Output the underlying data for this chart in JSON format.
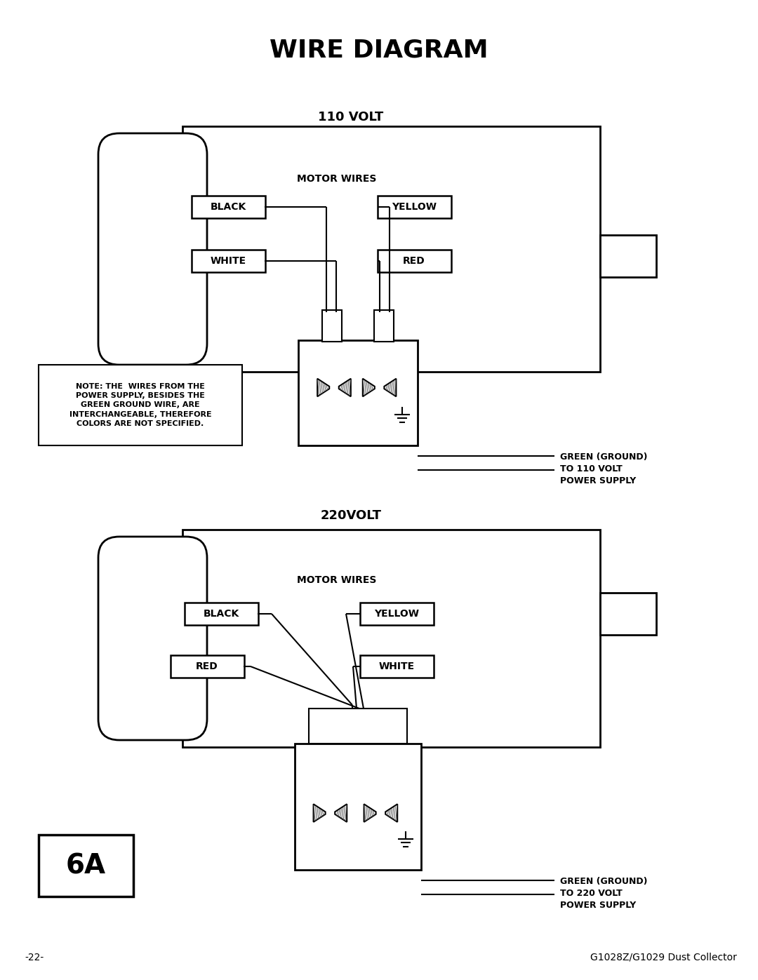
{
  "title": "WIRE DIAGRAM",
  "title_fontsize": 26,
  "title_fontweight": "bold",
  "bg_color": "#ffffff",
  "line_color": "#000000",
  "page_num": "-22-",
  "page_ref": "G1028Z/G1029 Dust Collector",
  "diagram1": {
    "label": "110 VOLT",
    "note": "NOTE: THE  WIRES FROM THE\nPOWER SUPPLY, BESIDES THE\nGREEN GROUND WIRE, ARE\nINTERCHANGEABLE, THEREFORE\nCOLORS ARE NOT SPECIFIED.",
    "ground_label": "GREEN (GROUND)\nTO 110 VOLT\nPOWER SUPPLY"
  },
  "diagram2": {
    "label": "220VOLT",
    "ground_label": "GREEN (GROUND)\nTO 220 VOLT\nPOWER SUPPLY",
    "page_label": "6A"
  }
}
